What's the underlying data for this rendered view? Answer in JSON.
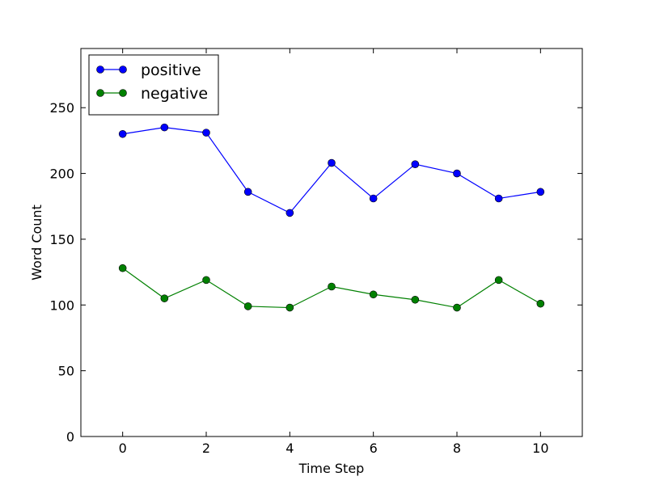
{
  "chart_data": {
    "type": "line",
    "title": "",
    "xlabel": "Time Step",
    "ylabel": "Word Count",
    "xlim": [
      -1,
      11
    ],
    "ylim": [
      0,
      295
    ],
    "x_ticks": [
      0,
      2,
      4,
      6,
      8,
      10
    ],
    "y_ticks": [
      0,
      50,
      100,
      150,
      200,
      250
    ],
    "grid": false,
    "legend_position": "top-left",
    "x": [
      0,
      1,
      2,
      3,
      4,
      5,
      6,
      7,
      8,
      9,
      10
    ],
    "series": [
      {
        "name": "positive",
        "color": "#0000ff",
        "marker": "circle",
        "values": [
          230,
          235,
          231,
          186,
          170,
          208,
          181,
          207,
          200,
          181,
          186
        ]
      },
      {
        "name": "negative",
        "color": "#008000",
        "marker": "circle",
        "values": [
          128,
          105,
          119,
          99,
          98,
          114,
          108,
          104,
          98,
          119,
          101
        ]
      }
    ]
  }
}
